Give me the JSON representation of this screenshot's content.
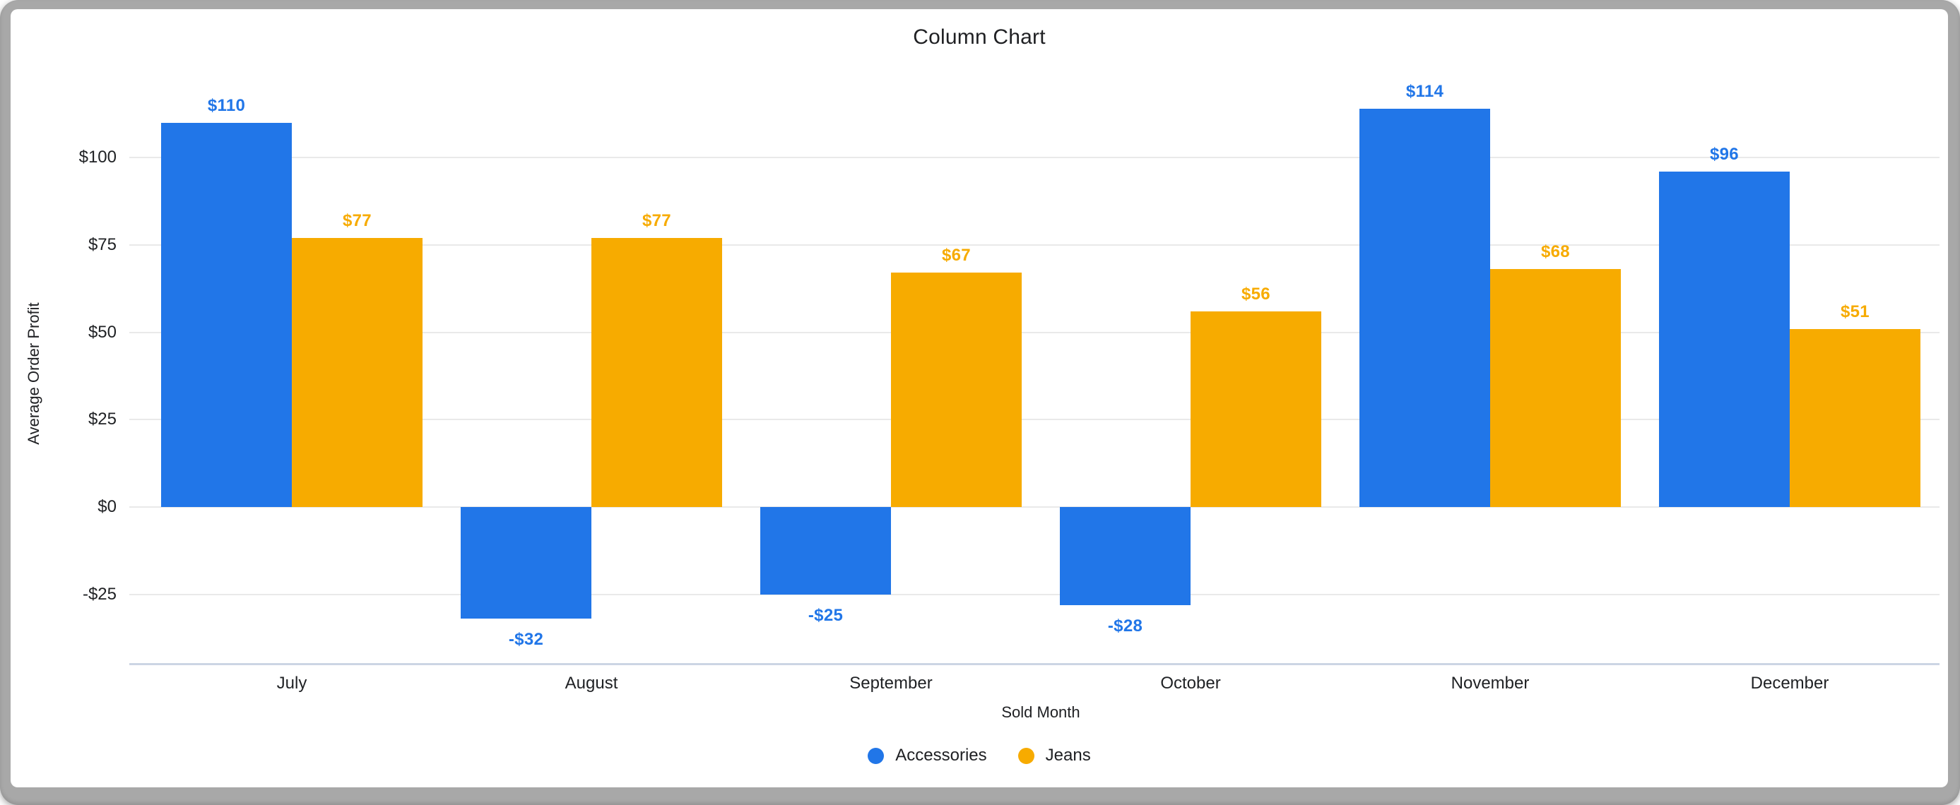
{
  "chart_data": {
    "type": "bar",
    "title": "Column Chart",
    "xlabel": "Sold Month",
    "ylabel": "Average Order Profit",
    "categories": [
      "July",
      "August",
      "September",
      "October",
      "November",
      "December"
    ],
    "series": [
      {
        "name": "Accessories",
        "color": "#2176e8",
        "values": [
          110,
          -32,
          -25,
          -28,
          114,
          96
        ],
        "labels": [
          "$110",
          "-$32",
          "-$25",
          "-$28",
          "$114",
          "$96"
        ]
      },
      {
        "name": "Jeans",
        "color": "#f7ab00",
        "values": [
          77,
          77,
          67,
          56,
          68,
          51
        ],
        "labels": [
          "$77",
          "$77",
          "$67",
          "$56",
          "$68",
          "$51"
        ]
      }
    ],
    "y_ticks": [
      {
        "value": 100,
        "label": "$100"
      },
      {
        "value": 75,
        "label": "$75"
      },
      {
        "value": 50,
        "label": "$50"
      },
      {
        "value": 25,
        "label": "$25"
      },
      {
        "value": 0,
        "label": "$0"
      },
      {
        "value": -25,
        "label": "-$25"
      }
    ],
    "ylim": [
      -45,
      121
    ],
    "grid": true,
    "legend_position": "bottom"
  },
  "colors": {
    "accessories": "#2176e8",
    "jeans": "#f7ab00",
    "gridline": "#e9e9e9",
    "axis_line": "#ccd5e4",
    "text": "#202124",
    "window_frame": "#a8a8a8",
    "background": "#ffffff"
  }
}
